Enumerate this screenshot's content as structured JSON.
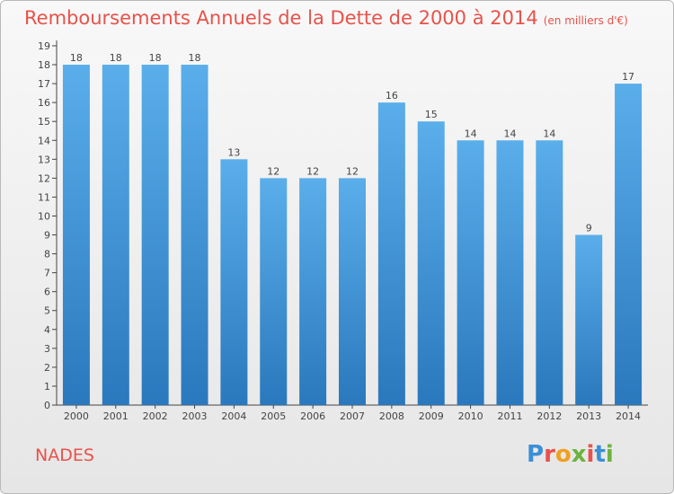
{
  "header": {
    "title": "Remboursements Annuels de la Dette de 2000 à 2014",
    "unit": "(en milliers d'€)"
  },
  "footer": {
    "commune": "NADES",
    "logo_text": "Proxiti"
  },
  "colors": {
    "title": "#e8524a",
    "bar_top": "#5aaeea",
    "bar_bottom": "#2a78bd",
    "logo_letters": [
      "#3b8fd6",
      "#e8524a",
      "#f0a020",
      "#6cb33e",
      "#e8524a",
      "#3b8fd6",
      "#6cb33e"
    ]
  },
  "chart_data": {
    "type": "bar",
    "categories": [
      "2000",
      "2001",
      "2002",
      "2003",
      "2004",
      "2005",
      "2006",
      "2007",
      "2008",
      "2009",
      "2010",
      "2011",
      "2012",
      "2013",
      "2014"
    ],
    "values": [
      18,
      18,
      18,
      18,
      13,
      12,
      12,
      12,
      16,
      15,
      14,
      14,
      14,
      9,
      17
    ],
    "title": "Remboursements Annuels de la Dette de 2000 à 2014",
    "ylim": [
      0,
      19
    ],
    "yticks": [
      "0",
      "1",
      "2",
      "3",
      "4",
      "5",
      "6",
      "7",
      "8",
      "9",
      "10",
      "11",
      "12",
      "13",
      "14",
      "15",
      "16",
      "17",
      "18",
      "19"
    ],
    "grid": false
  }
}
